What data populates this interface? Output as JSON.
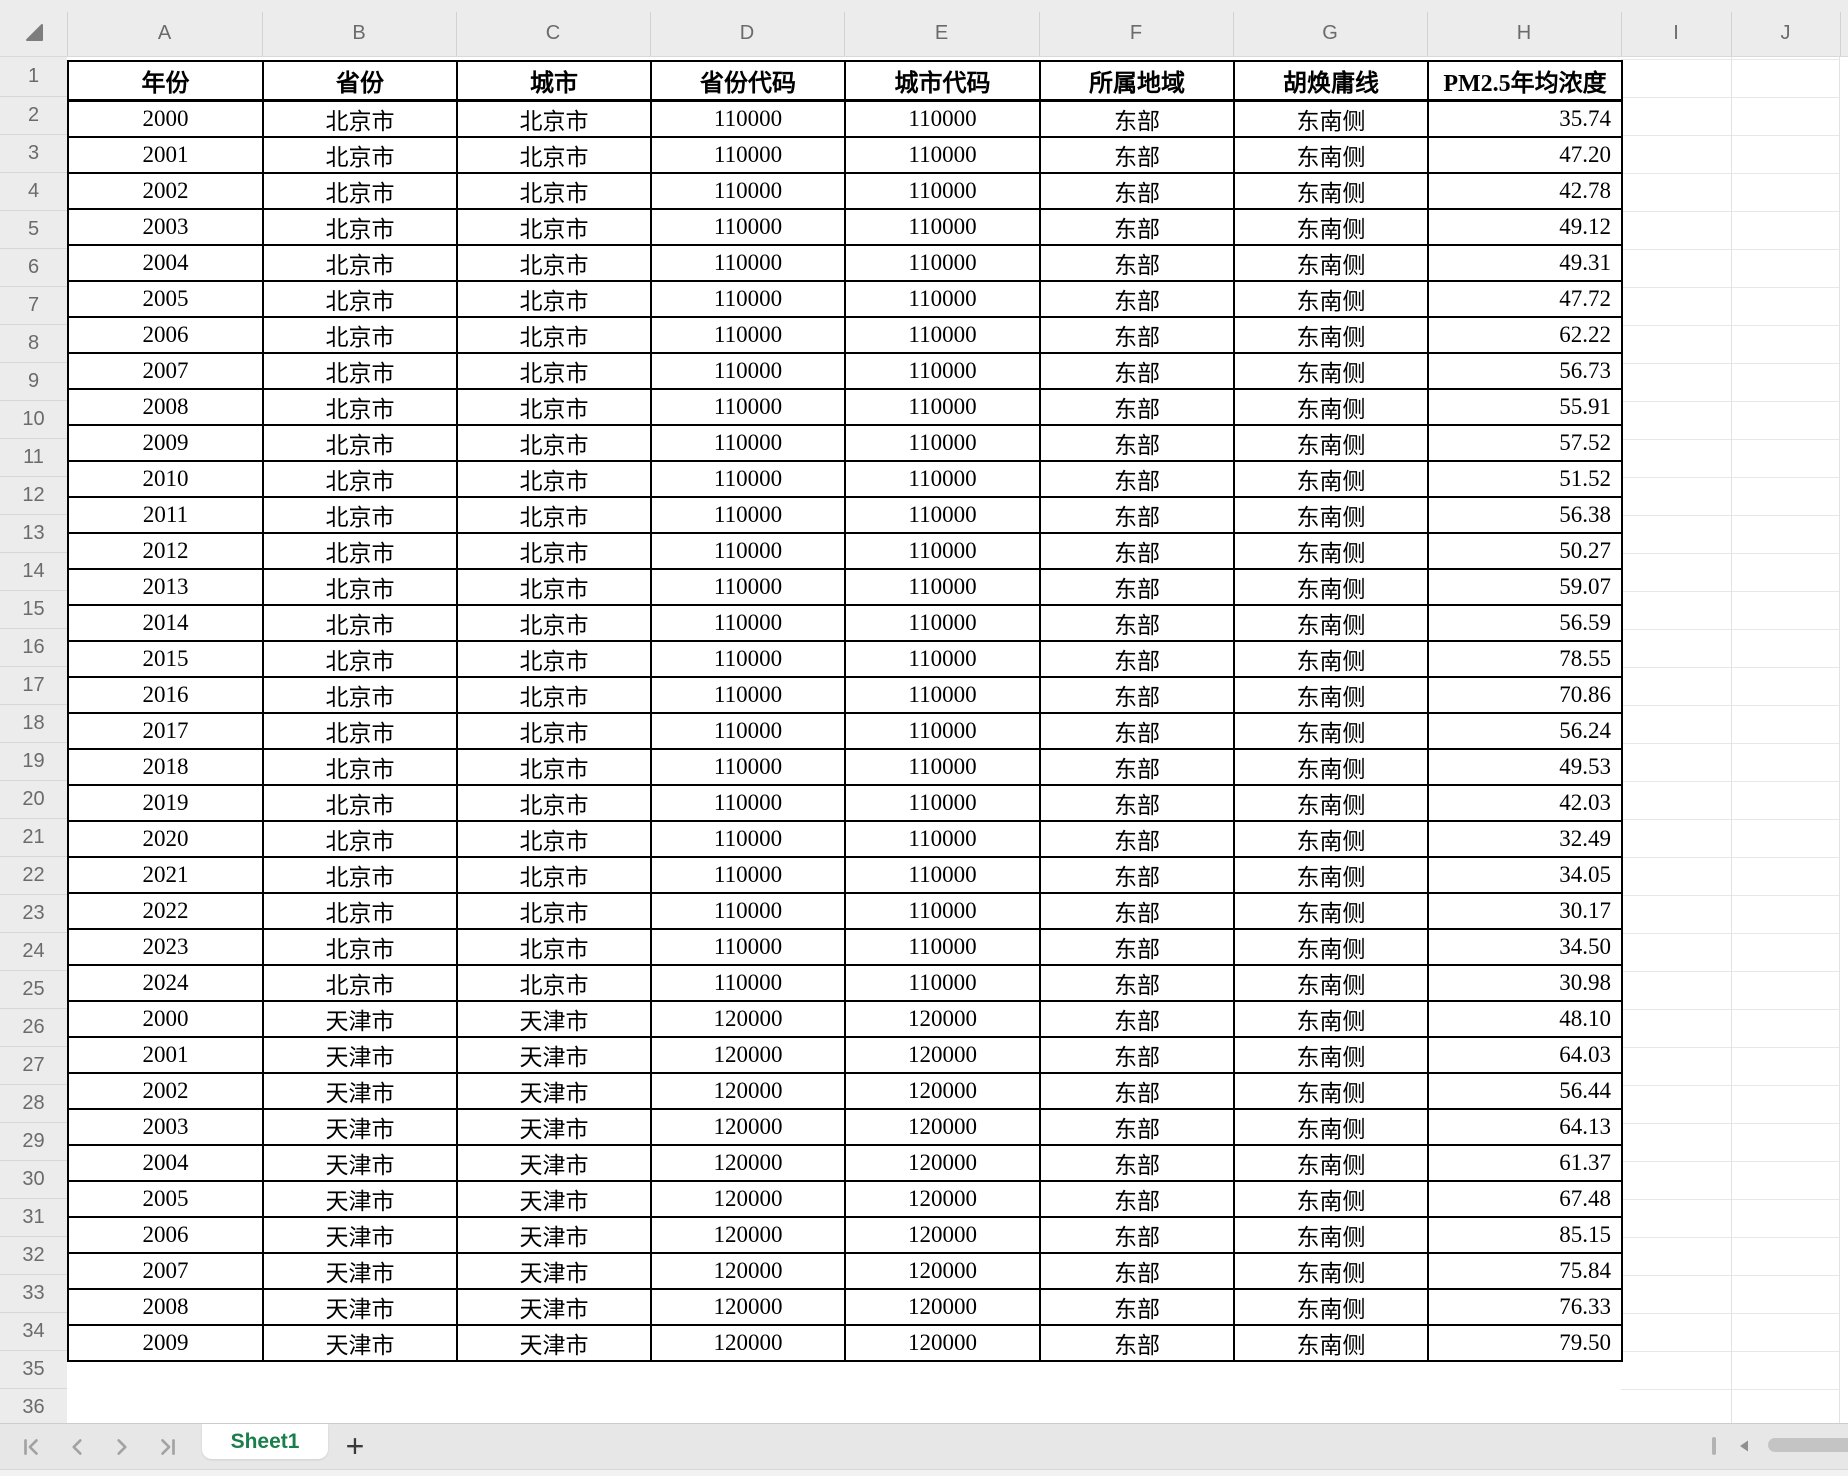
{
  "columns": {
    "letters": [
      "A",
      "B",
      "C",
      "D",
      "E",
      "F",
      "G",
      "H",
      "I",
      "J"
    ]
  },
  "rows": {
    "numbers": [
      "1",
      "2",
      "3",
      "4",
      "5",
      "6",
      "7",
      "8",
      "9",
      "10",
      "11",
      "12",
      "13",
      "14",
      "15",
      "16",
      "17",
      "18",
      "19",
      "20",
      "21",
      "22",
      "23",
      "24",
      "25",
      "26",
      "27",
      "28",
      "29",
      "30",
      "31",
      "32",
      "33",
      "34",
      "35",
      "36"
    ]
  },
  "sheet": {
    "headers": [
      "年份",
      "省份",
      "城市",
      "省份代码",
      "城市代码",
      "所属地域",
      "胡焕庸线",
      "PM2.5年均浓度"
    ],
    "rows": [
      [
        "2000",
        "北京市",
        "北京市",
        "110000",
        "110000",
        "东部",
        "东南侧",
        "35.74"
      ],
      [
        "2001",
        "北京市",
        "北京市",
        "110000",
        "110000",
        "东部",
        "东南侧",
        "47.20"
      ],
      [
        "2002",
        "北京市",
        "北京市",
        "110000",
        "110000",
        "东部",
        "东南侧",
        "42.78"
      ],
      [
        "2003",
        "北京市",
        "北京市",
        "110000",
        "110000",
        "东部",
        "东南侧",
        "49.12"
      ],
      [
        "2004",
        "北京市",
        "北京市",
        "110000",
        "110000",
        "东部",
        "东南侧",
        "49.31"
      ],
      [
        "2005",
        "北京市",
        "北京市",
        "110000",
        "110000",
        "东部",
        "东南侧",
        "47.72"
      ],
      [
        "2006",
        "北京市",
        "北京市",
        "110000",
        "110000",
        "东部",
        "东南侧",
        "62.22"
      ],
      [
        "2007",
        "北京市",
        "北京市",
        "110000",
        "110000",
        "东部",
        "东南侧",
        "56.73"
      ],
      [
        "2008",
        "北京市",
        "北京市",
        "110000",
        "110000",
        "东部",
        "东南侧",
        "55.91"
      ],
      [
        "2009",
        "北京市",
        "北京市",
        "110000",
        "110000",
        "东部",
        "东南侧",
        "57.52"
      ],
      [
        "2010",
        "北京市",
        "北京市",
        "110000",
        "110000",
        "东部",
        "东南侧",
        "51.52"
      ],
      [
        "2011",
        "北京市",
        "北京市",
        "110000",
        "110000",
        "东部",
        "东南侧",
        "56.38"
      ],
      [
        "2012",
        "北京市",
        "北京市",
        "110000",
        "110000",
        "东部",
        "东南侧",
        "50.27"
      ],
      [
        "2013",
        "北京市",
        "北京市",
        "110000",
        "110000",
        "东部",
        "东南侧",
        "59.07"
      ],
      [
        "2014",
        "北京市",
        "北京市",
        "110000",
        "110000",
        "东部",
        "东南侧",
        "56.59"
      ],
      [
        "2015",
        "北京市",
        "北京市",
        "110000",
        "110000",
        "东部",
        "东南侧",
        "78.55"
      ],
      [
        "2016",
        "北京市",
        "北京市",
        "110000",
        "110000",
        "东部",
        "东南侧",
        "70.86"
      ],
      [
        "2017",
        "北京市",
        "北京市",
        "110000",
        "110000",
        "东部",
        "东南侧",
        "56.24"
      ],
      [
        "2018",
        "北京市",
        "北京市",
        "110000",
        "110000",
        "东部",
        "东南侧",
        "49.53"
      ],
      [
        "2019",
        "北京市",
        "北京市",
        "110000",
        "110000",
        "东部",
        "东南侧",
        "42.03"
      ],
      [
        "2020",
        "北京市",
        "北京市",
        "110000",
        "110000",
        "东部",
        "东南侧",
        "32.49"
      ],
      [
        "2021",
        "北京市",
        "北京市",
        "110000",
        "110000",
        "东部",
        "东南侧",
        "34.05"
      ],
      [
        "2022",
        "北京市",
        "北京市",
        "110000",
        "110000",
        "东部",
        "东南侧",
        "30.17"
      ],
      [
        "2023",
        "北京市",
        "北京市",
        "110000",
        "110000",
        "东部",
        "东南侧",
        "34.50"
      ],
      [
        "2024",
        "北京市",
        "北京市",
        "110000",
        "110000",
        "东部",
        "东南侧",
        "30.98"
      ],
      [
        "2000",
        "天津市",
        "天津市",
        "120000",
        "120000",
        "东部",
        "东南侧",
        "48.10"
      ],
      [
        "2001",
        "天津市",
        "天津市",
        "120000",
        "120000",
        "东部",
        "东南侧",
        "64.03"
      ],
      [
        "2002",
        "天津市",
        "天津市",
        "120000",
        "120000",
        "东部",
        "东南侧",
        "56.44"
      ],
      [
        "2003",
        "天津市",
        "天津市",
        "120000",
        "120000",
        "东部",
        "东南侧",
        "64.13"
      ],
      [
        "2004",
        "天津市",
        "天津市",
        "120000",
        "120000",
        "东部",
        "东南侧",
        "61.37"
      ],
      [
        "2005",
        "天津市",
        "天津市",
        "120000",
        "120000",
        "东部",
        "东南侧",
        "67.48"
      ],
      [
        "2006",
        "天津市",
        "天津市",
        "120000",
        "120000",
        "东部",
        "东南侧",
        "85.15"
      ],
      [
        "2007",
        "天津市",
        "天津市",
        "120000",
        "120000",
        "东部",
        "东南侧",
        "75.84"
      ],
      [
        "2008",
        "天津市",
        "天津市",
        "120000",
        "120000",
        "东部",
        "东南侧",
        "76.33"
      ],
      [
        "2009",
        "天津市",
        "天津市",
        "120000",
        "120000",
        "东部",
        "东南侧",
        "79.50"
      ]
    ]
  },
  "tab_bar": {
    "active_tab": "Sheet1",
    "add_label": "+",
    "nav_icons": [
      "first-sheet",
      "previous-sheet",
      "next-sheet",
      "last-sheet"
    ],
    "scroll_icon": "scroll-left"
  },
  "colors": {
    "tab_text_green": "#1a7f4b",
    "table_border": "#000000",
    "header_bg": "#ececec",
    "tabbar_bg": "#e7e7e7",
    "gridline": "#e2e2e2",
    "header_text": "#6b6b6b"
  }
}
